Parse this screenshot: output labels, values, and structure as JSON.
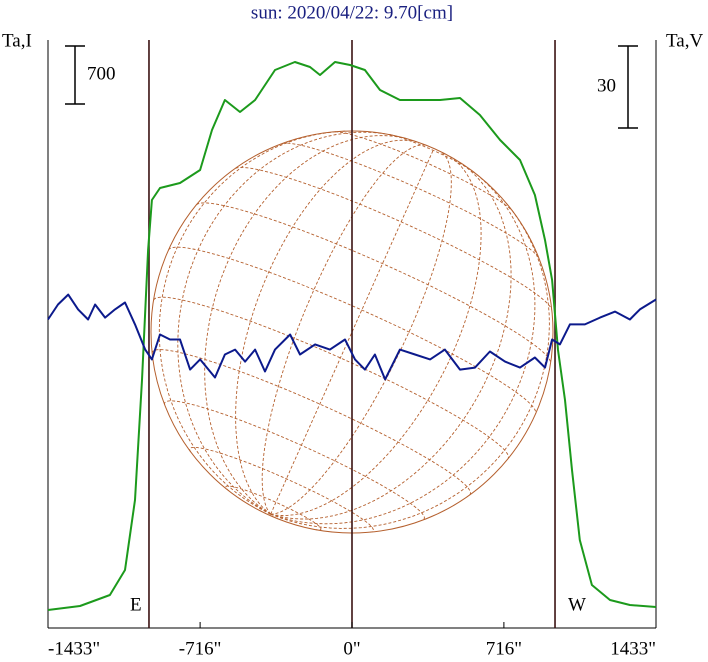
{
  "chart_data": {
    "type": "line",
    "title": "sun: 2020/04/22: 9.70[cm]",
    "ylabel": "Ta,I",
    "y2label": "Ta,V",
    "xlim": [
      -1433,
      1433
    ],
    "xticks": [
      {
        "value": -1433,
        "label": "-1433\""
      },
      {
        "value": -716,
        "label": "-716\""
      },
      {
        "value": 0,
        "label": "0\""
      },
      {
        "value": 716,
        "label": "716\""
      },
      {
        "value": 1433,
        "label": "1433\""
      }
    ],
    "ylim": [
      0,
      7100
    ],
    "y2lim": [
      -100,
      115
    ],
    "scale_bars": [
      {
        "label": "700",
        "value": 700,
        "axis": "y"
      },
      {
        "label": "30",
        "value": 30,
        "axis": "y2"
      }
    ],
    "limb_lines": [
      -957,
      0,
      957
    ],
    "limb_labels": [
      "E",
      "W"
    ],
    "series": [
      {
        "name": "Ta,I",
        "color": "#1c9a1c",
        "x": [
          -1433,
          -1282,
          -1141,
          -1070,
          -1023,
          -990,
          -961,
          -943,
          -905,
          -811,
          -716,
          -660,
          -599,
          -528,
          -457,
          -363,
          -269,
          -198,
          -151,
          -80,
          -9,
          61,
          132,
          226,
          320,
          415,
          509,
          603,
          698,
          792,
          862,
          910,
          943,
          971,
          1004,
          1037,
          1074,
          1131,
          1216,
          1310,
          1433
        ],
        "values": [
          217,
          266,
          398,
          700,
          1546,
          2995,
          4564,
          5168,
          5313,
          5373,
          5530,
          6013,
          6376,
          6231,
          6376,
          6738,
          6834,
          6774,
          6677,
          6834,
          6798,
          6738,
          6496,
          6376,
          6376,
          6376,
          6400,
          6194,
          5893,
          5651,
          5228,
          4685,
          4202,
          3357,
          2753,
          1908,
          1063,
          519,
          338,
          278,
          254
        ]
      },
      {
        "name": "Ta,V",
        "color": "#0c1a8c",
        "axis": "y2",
        "x": [
          -1433,
          -1386,
          -1338,
          -1291,
          -1244,
          -1211,
          -1164,
          -1117,
          -1070,
          -1023,
          -975,
          -943,
          -905,
          -858,
          -811,
          -763,
          -716,
          -646,
          -599,
          -551,
          -504,
          -457,
          -410,
          -363,
          -292,
          -245,
          -174,
          -104,
          -33,
          14,
          61,
          108,
          156,
          226,
          297,
          368,
          438,
          509,
          580,
          650,
          721,
          792,
          862,
          910,
          943,
          980,
          1027,
          1098,
          1169,
          1240,
          1310,
          1357,
          1433
        ],
        "values": [
          12.8,
          18.3,
          21.9,
          16.5,
          12.8,
          18.3,
          13.5,
          16.5,
          19.0,
          11.0,
          1.8,
          -1.8,
          7.3,
          5.5,
          5.5,
          -5.5,
          -1.8,
          -8.4,
          0,
          1.8,
          -2.6,
          1.8,
          -6.2,
          1.8,
          7.3,
          0,
          3.7,
          1.8,
          5.5,
          -1.8,
          -5.5,
          0,
          -9.1,
          1.8,
          0,
          -1.8,
          1.8,
          -5.5,
          -4.8,
          1.1,
          -2.6,
          -4.8,
          -1.1,
          -4.8,
          5.5,
          3.7,
          11.0,
          11.0,
          13.5,
          15.7,
          12.8,
          16.5,
          20.1
        ]
      }
    ]
  }
}
